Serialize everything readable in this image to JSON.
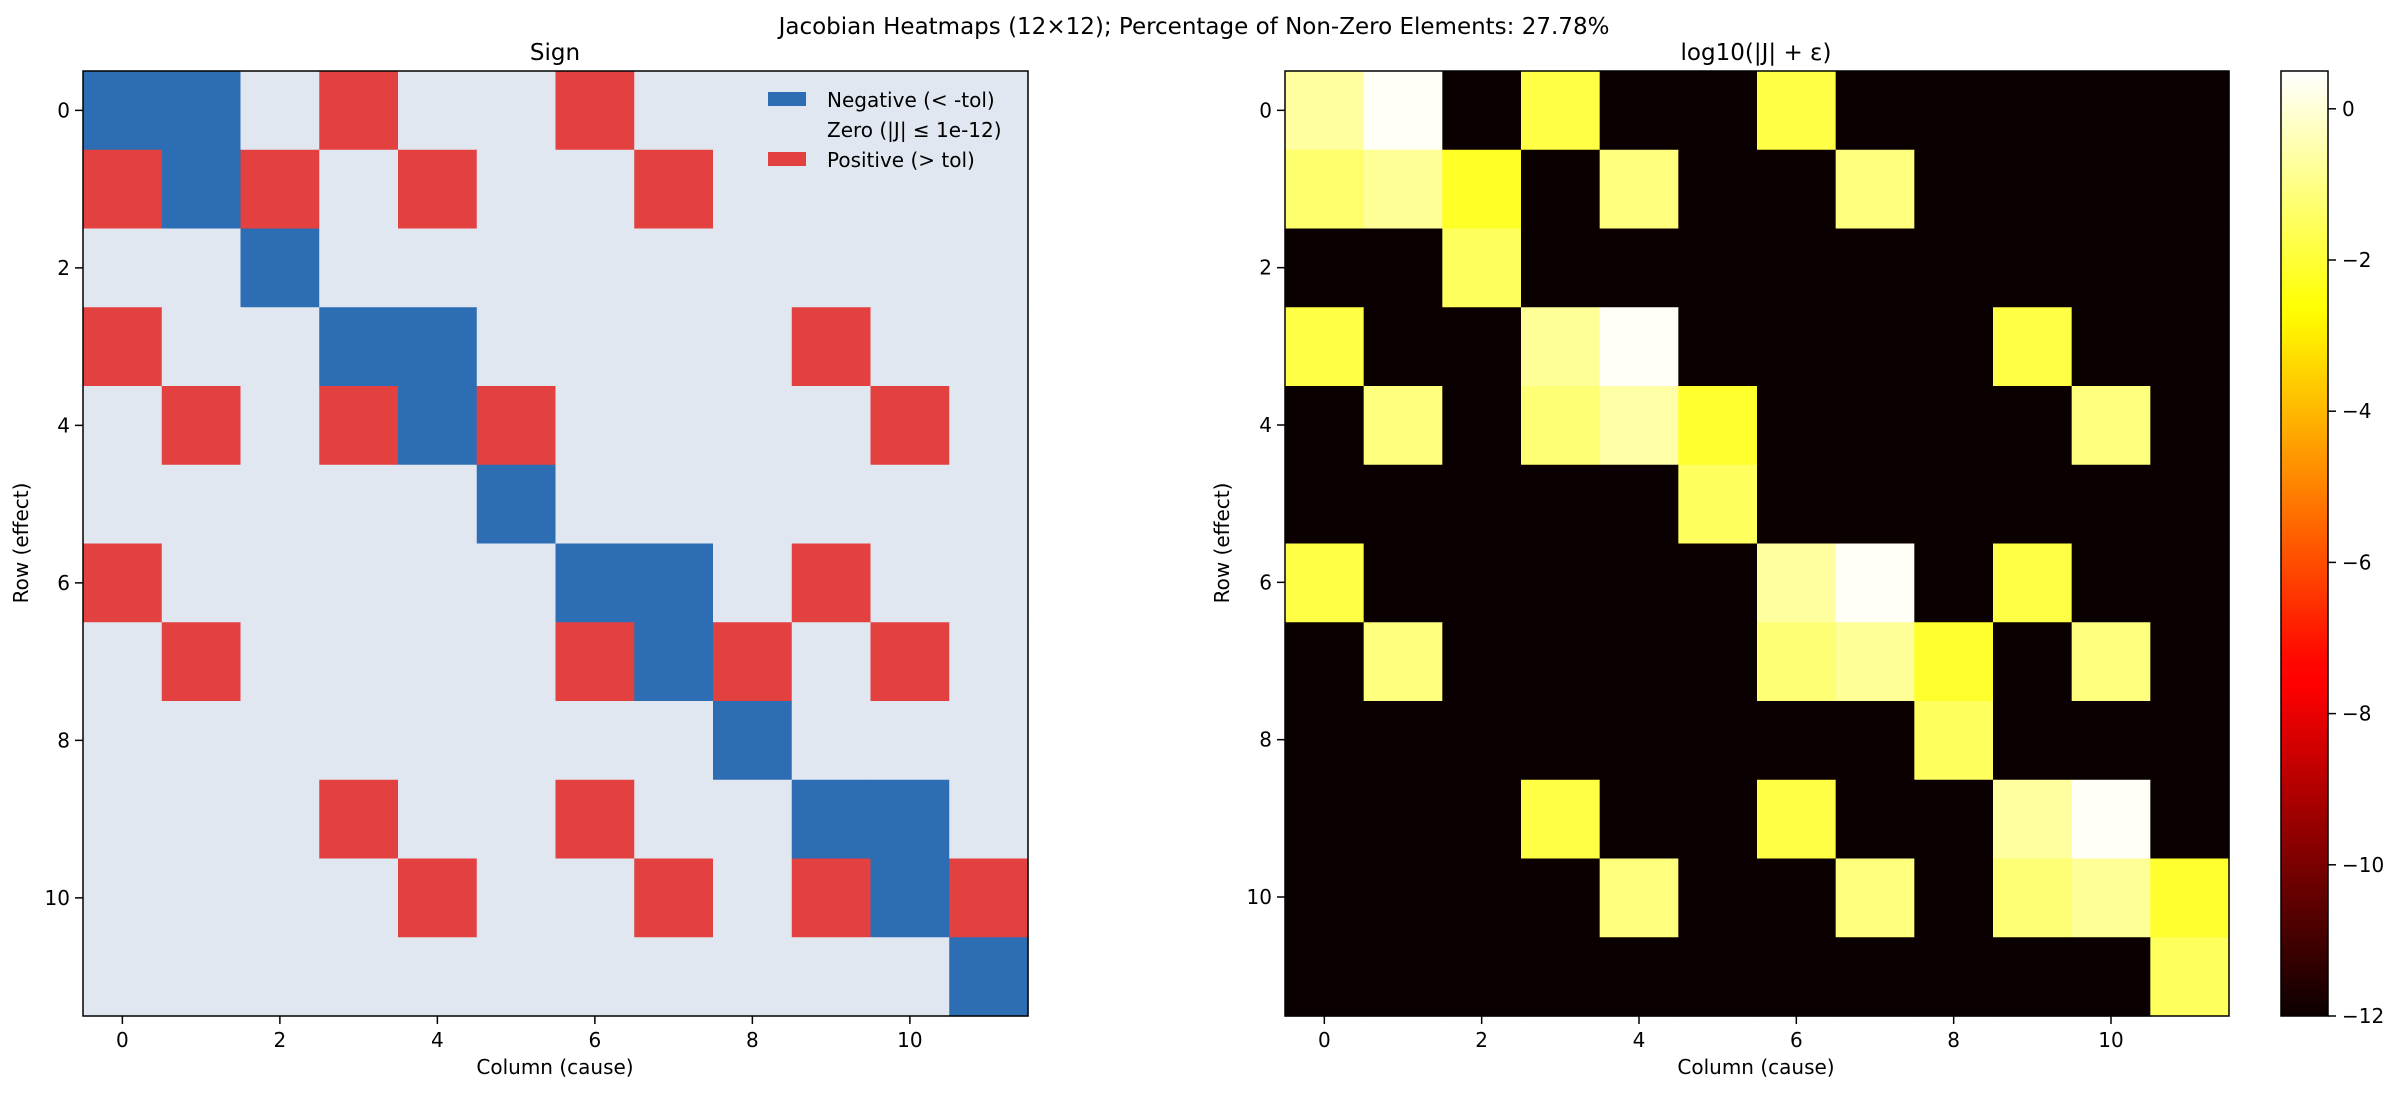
{
  "figure": {
    "suptitle": "Jacobian Heatmaps (12×12); Percentage of Non-Zero Elements: 27.78%"
  },
  "colors": {
    "negative": "#2c6db3",
    "zero": "#e1e7f0",
    "positive": "#e34040"
  },
  "chart_data": [
    {
      "type": "heatmap",
      "title": "Sign",
      "xlabel": "Column (cause)",
      "ylabel": "Row (effect)",
      "x_ticks": [
        0,
        2,
        4,
        6,
        8,
        10
      ],
      "y_ticks": [
        0,
        2,
        4,
        6,
        8,
        10
      ],
      "legend_position": "top-right",
      "legend": [
        {
          "label": "Negative (< -tol)",
          "value": -1
        },
        {
          "label": "Zero (|J| ≤ 1e-12)",
          "value": 0
        },
        {
          "label": "Positive (> tol)",
          "value": 1
        }
      ],
      "matrix": [
        [
          -1,
          -1,
          0,
          1,
          0,
          0,
          1,
          0,
          0,
          0,
          0,
          0
        ],
        [
          1,
          -1,
          1,
          0,
          1,
          0,
          0,
          1,
          0,
          0,
          0,
          0
        ],
        [
          0,
          0,
          -1,
          0,
          0,
          0,
          0,
          0,
          0,
          0,
          0,
          0
        ],
        [
          1,
          0,
          0,
          -1,
          -1,
          0,
          0,
          0,
          0,
          1,
          0,
          0
        ],
        [
          0,
          1,
          0,
          1,
          -1,
          1,
          0,
          0,
          0,
          0,
          1,
          0
        ],
        [
          0,
          0,
          0,
          0,
          0,
          -1,
          0,
          0,
          0,
          0,
          0,
          0
        ],
        [
          1,
          0,
          0,
          0,
          0,
          0,
          -1,
          -1,
          0,
          1,
          0,
          0
        ],
        [
          0,
          1,
          0,
          0,
          0,
          0,
          1,
          -1,
          1,
          0,
          1,
          0
        ],
        [
          0,
          0,
          0,
          0,
          0,
          0,
          0,
          0,
          -1,
          0,
          0,
          0
        ],
        [
          0,
          0,
          0,
          1,
          0,
          0,
          1,
          0,
          0,
          -1,
          -1,
          0
        ],
        [
          0,
          0,
          0,
          0,
          1,
          0,
          0,
          1,
          0,
          1,
          -1,
          1
        ],
        [
          0,
          0,
          0,
          0,
          0,
          0,
          0,
          0,
          0,
          0,
          0,
          -1
        ]
      ]
    },
    {
      "type": "heatmap",
      "title": "log10(|J| + ε)",
      "xlabel": "Column (cause)",
      "ylabel": "Row (effect)",
      "x_ticks": [
        0,
        2,
        4,
        6,
        8,
        10
      ],
      "y_ticks": [
        0,
        2,
        4,
        6,
        8,
        10
      ],
      "colormap": "hot",
      "vmin": -12,
      "vmax": 0.5,
      "colorbar_ticks": [
        0,
        -2,
        -4,
        -6,
        -8,
        -10,
        -12
      ],
      "colorbar_labels": [
        "0",
        "−2",
        "−4",
        "−6",
        "−8",
        "−10",
        "−12"
      ],
      "matrix": [
        [
          -0.7,
          0.4,
          -12,
          -1.8,
          -12,
          -12,
          -1.8,
          -12,
          -12,
          -12,
          -12,
          -12
        ],
        [
          -1.3,
          -0.8,
          -2.2,
          -12,
          -1.1,
          -12,
          -12,
          -1.1,
          -12,
          -12,
          -12,
          -12
        ],
        [
          -12,
          -12,
          -1.5,
          -12,
          -12,
          -12,
          -12,
          -12,
          -12,
          -12,
          -12,
          -12
        ],
        [
          -1.8,
          -12,
          -12,
          -0.8,
          0.4,
          -12,
          -12,
          -12,
          -12,
          -1.8,
          -12,
          -12
        ],
        [
          -12,
          -1.1,
          -12,
          -1.2,
          -0.6,
          -2.1,
          -12,
          -12,
          -12,
          -12,
          -1.1,
          -12
        ],
        [
          -12,
          -12,
          -12,
          -12,
          -12,
          -1.5,
          -12,
          -12,
          -12,
          -12,
          -12,
          -12
        ],
        [
          -1.8,
          -12,
          -12,
          -12,
          -12,
          -12,
          -0.7,
          0.4,
          -12,
          -1.8,
          -12,
          -12
        ],
        [
          -12,
          -1.1,
          -12,
          -12,
          -12,
          -12,
          -1.2,
          -0.8,
          -2.1,
          -12,
          -1.1,
          -12
        ],
        [
          -12,
          -12,
          -12,
          -12,
          -12,
          -12,
          -12,
          -12,
          -1.5,
          -12,
          -12,
          -12
        ],
        [
          -12,
          -12,
          -12,
          -1.8,
          -12,
          -12,
          -1.8,
          -12,
          -12,
          -0.7,
          0.4,
          -12
        ],
        [
          -12,
          -12,
          -12,
          -12,
          -1.1,
          -12,
          -12,
          -1.1,
          -12,
          -1.2,
          -0.8,
          -2.1
        ],
        [
          -12,
          -12,
          -12,
          -12,
          -12,
          -12,
          -12,
          -12,
          -12,
          -12,
          -12,
          -1.5
        ]
      ]
    }
  ]
}
